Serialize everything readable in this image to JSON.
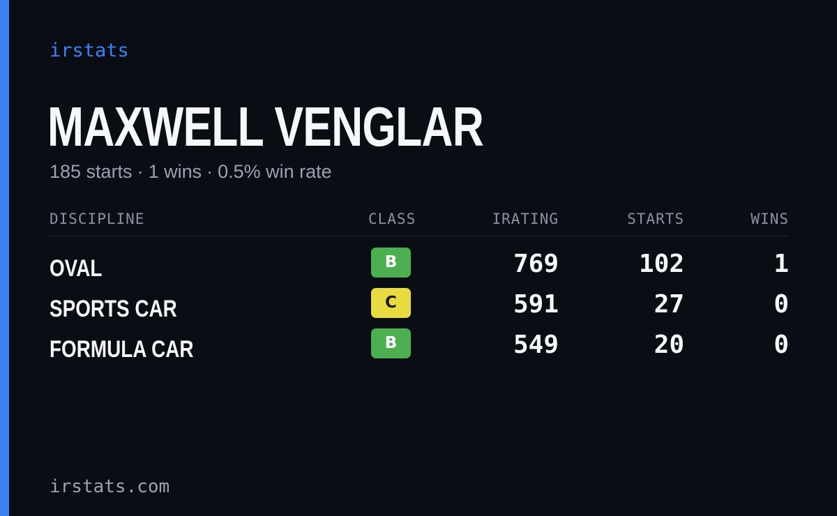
{
  "brand": "irstats",
  "player": {
    "name": "MAXWELL VENGLAR",
    "starts_text": "185 starts",
    "wins_text": "1 wins",
    "win_rate_text": "0.5% win rate",
    "separator": "·"
  },
  "table": {
    "headers": {
      "discipline": "DISCIPLINE",
      "class": "CLASS",
      "irating": "IRATING",
      "starts": "STARTS",
      "wins": "WINS"
    },
    "rows": [
      {
        "discipline": "OVAL",
        "class": "B",
        "class_color": "#4caf50",
        "class_text_color": "#ffffff",
        "irating": "769",
        "starts": "102",
        "wins": "1"
      },
      {
        "discipline": "SPORTS CAR",
        "class": "C",
        "class_color": "#e8db41",
        "class_text_color": "#1a1a1a",
        "irating": "591",
        "starts": "27",
        "wins": "0"
      },
      {
        "discipline": "FORMULA CAR",
        "class": "B",
        "class_color": "#4caf50",
        "class_text_color": "#ffffff",
        "irating": "549",
        "starts": "20",
        "wins": "0"
      }
    ]
  },
  "footer": "irstats.com",
  "colors": {
    "background": "#0a0d14",
    "accent": "#3b82f6",
    "text": "#f5f7fa",
    "muted": "#9aa3b2"
  }
}
